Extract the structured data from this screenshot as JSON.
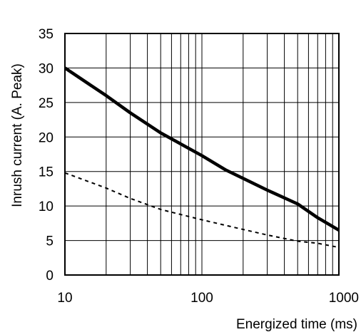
{
  "chart_data": {
    "type": "line",
    "xscale": "log",
    "xlim": [
      10,
      1000
    ],
    "ylim": [
      0,
      35
    ],
    "xlabel": "Energized time (ms)",
    "ylabel": "Inrush current (A. Peak)",
    "xticks": [
      10,
      100,
      1000
    ],
    "xtick_labels": [
      "10",
      "100",
      "1000"
    ],
    "yticks": [
      0,
      5,
      10,
      15,
      20,
      25,
      30,
      35
    ],
    "ytick_labels": [
      "0",
      "5",
      "10",
      "15",
      "20",
      "25",
      "30",
      "35"
    ],
    "grid": true,
    "series": [
      {
        "style": "solid-thick",
        "color": "#000000",
        "x": [
          10,
          20,
          30,
          50,
          100,
          150,
          200,
          300,
          500,
          700,
          1000
        ],
        "y": [
          30,
          26,
          23.5,
          20.6,
          17.3,
          15.2,
          14.0,
          12.3,
          10.3,
          8.3,
          6.5
        ]
      },
      {
        "style": "dashed",
        "color": "#000000",
        "x": [
          10,
          20,
          30,
          50,
          100,
          200,
          300,
          500,
          700,
          1000
        ],
        "y": [
          14.8,
          12.6,
          11.1,
          9.5,
          8.0,
          6.6,
          5.8,
          4.9,
          4.6,
          4.0
        ]
      }
    ]
  }
}
